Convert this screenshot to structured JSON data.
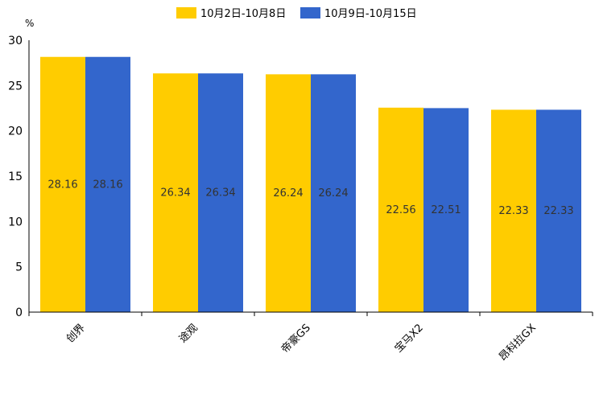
{
  "chart_data": {
    "type": "bar",
    "title": "",
    "xlabel": "",
    "ylabel": "%",
    "ylim": [
      0,
      30
    ],
    "yticks": [
      0,
      5,
      10,
      15,
      20,
      25,
      30
    ],
    "categories": [
      "创界",
      "途观",
      "帝豪GS",
      "宝马X2",
      "昂科拉GX"
    ],
    "series": [
      {
        "name": "10月2日-10月8日",
        "color": "#FFCC00",
        "values": [
          28.16,
          26.34,
          26.24,
          22.56,
          22.33
        ]
      },
      {
        "name": "10月9日-10月15日",
        "color": "#3366CC",
        "values": [
          28.16,
          26.34,
          26.24,
          22.51,
          22.33
        ]
      }
    ],
    "legend_position": "top-center",
    "grid": false
  }
}
